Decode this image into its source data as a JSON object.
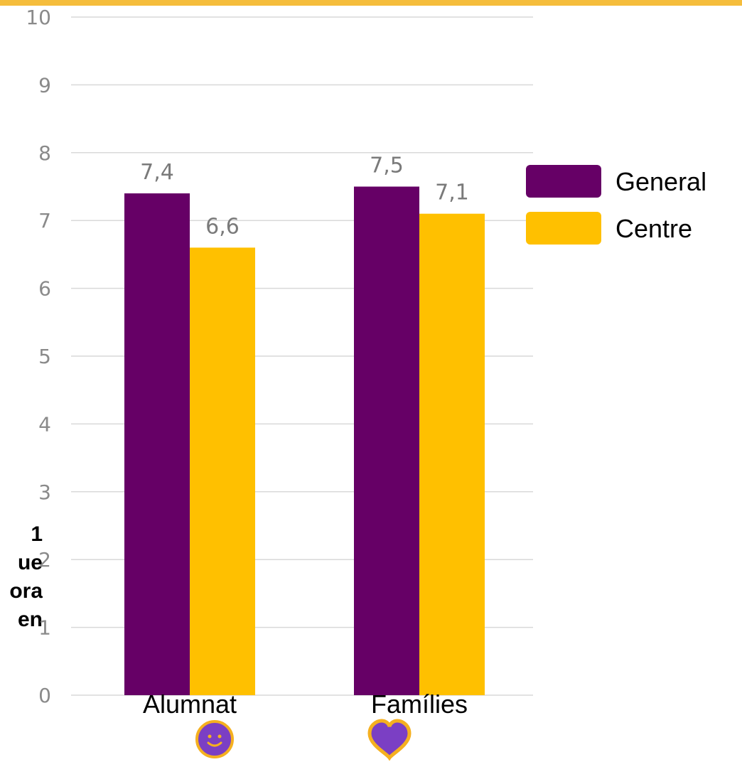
{
  "colors": {
    "top_bar": "#f5bd3c",
    "general": "#660066",
    "centre": "#ffc000",
    "grid": "#d9d9d9",
    "smiley_icon": "#7b3fc4",
    "heart_icon": "#7b3fc4",
    "icon_outline": "#f5b020"
  },
  "side_text_lines": [
    "1",
    "ue",
    "ora",
    "en"
  ],
  "icons": [
    "smiley-icon",
    "heart-icon"
  ],
  "chart_data": {
    "type": "bar",
    "categories": [
      "Alumnat",
      "Famílies"
    ],
    "series": [
      {
        "name": "General",
        "values": [
          7.4,
          7.5
        ],
        "labels": [
          "7,4",
          "7,5"
        ]
      },
      {
        "name": "Centre",
        "values": [
          6.6,
          7.1
        ],
        "labels": [
          "6,6",
          "7,1"
        ]
      }
    ],
    "ylim": [
      0,
      10
    ],
    "yticks": [
      "0",
      "1",
      "2",
      "3",
      "4",
      "5",
      "6",
      "7",
      "8",
      "9",
      "10"
    ],
    "grid": true,
    "legend": "right",
    "title": "",
    "xlabel": "",
    "ylabel": ""
  }
}
